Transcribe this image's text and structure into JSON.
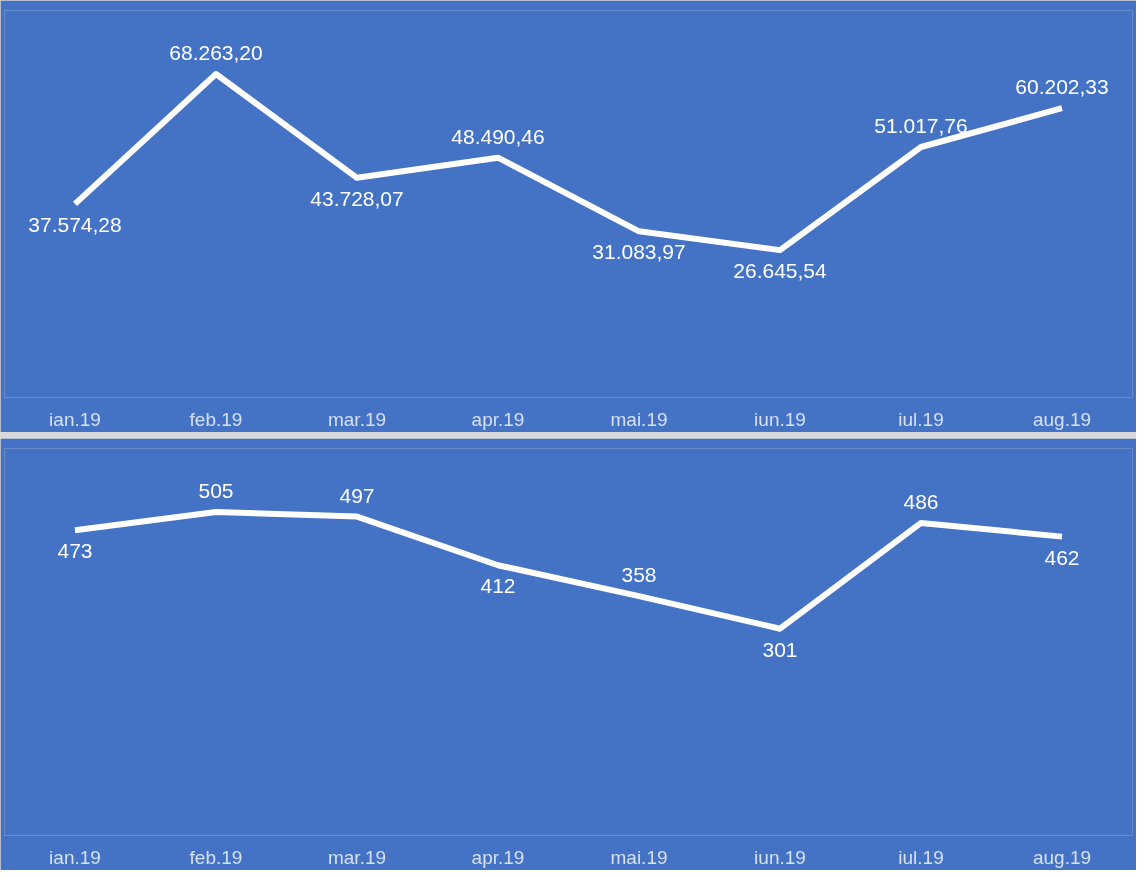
{
  "chart_data": [
    {
      "type": "line",
      "categories": [
        "ian.19",
        "feb.19",
        "mar.19",
        "apr.19",
        "mai.19",
        "iun.19",
        "iul.19",
        "aug.19"
      ],
      "series": [
        {
          "color": "#ffffff",
          "values": [
            37574.28,
            68263.2,
            43728.07,
            48490.46,
            31083.97,
            26645.54,
            51017.76,
            60202.33
          ],
          "value_labels": [
            "37.574,28",
            "68.263,20",
            "43.728,07",
            "48.490,46",
            "31.083,97",
            "26.645,54",
            "51.017,76",
            "60.202,33"
          ]
        }
      ],
      "grid": false,
      "tick_labels": "x",
      "marker": "none"
    },
    {
      "type": "line",
      "categories": [
        "ian.19",
        "feb.19",
        "mar.19",
        "apr.19",
        "mai.19",
        "iun.19",
        "iul.19",
        "aug.19"
      ],
      "series": [
        {
          "color": "#ffffff",
          "values": [
            473,
            505,
            497,
            412,
            358,
            301,
            486,
            462
          ],
          "value_labels": [
            "473",
            "505",
            "497",
            "412",
            "358",
            "301",
            "486",
            "462"
          ]
        }
      ],
      "grid": false,
      "tick_labels": "x",
      "marker": "none"
    }
  ]
}
